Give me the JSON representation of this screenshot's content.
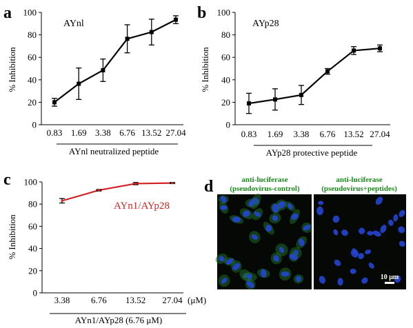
{
  "panels": {
    "a": {
      "letter": "a",
      "label": "AYnl",
      "xlabel": "AYnl  neutralized peptide"
    },
    "b": {
      "letter": "b",
      "label": "AYp28",
      "xlabel": "AYp28 protective peptide"
    },
    "c": {
      "letter": "c",
      "legend": "AYn1/AYp28",
      "xlabel": "AYn1/AYp28 (6.76 μM)",
      "unit": "(μM)"
    },
    "d": {
      "letter": "d",
      "left_title_1": "anti-luciferase",
      "left_title_2": "(pseudovirus-control)",
      "right_title_1": "anti-luciferase",
      "right_title_2": "(pseudovirus+peptides)",
      "scale_bar": "10 μm",
      "colors": {
        "cell_nuclei": "#2545d0",
        "cytoplasm": "#1e7a2a",
        "background": "#050805",
        "title_green": "#1a8a1a"
      }
    }
  },
  "chart_data": [
    {
      "type": "line",
      "panel": "a",
      "ylabel": "% Inhibition",
      "xlabel": "AYnl  neutralized peptide",
      "categories": [
        "0.83",
        "1.69",
        "3.38",
        "6.76",
        "13.52",
        "27.04"
      ],
      "series": [
        {
          "name": "AYnl",
          "values": [
            20,
            36.5,
            48.5,
            76.5,
            82.5,
            93.5
          ],
          "errors": [
            3.5,
            14,
            10,
            12.5,
            11.5,
            3.5
          ],
          "color": "#000000"
        }
      ],
      "ylim": [
        0,
        100
      ],
      "yticks": [
        0,
        20,
        40,
        60,
        80,
        100
      ]
    },
    {
      "type": "line",
      "panel": "b",
      "ylabel": "% Inhibition",
      "xlabel": "AYp28 protective peptide",
      "categories": [
        "0.83",
        "1.69",
        "3.38",
        "6.76",
        "13.52",
        "27.04"
      ],
      "series": [
        {
          "name": "AYp28",
          "values": [
            19,
            22.5,
            26.5,
            47.5,
            66,
            68
          ],
          "errors": [
            9,
            9.5,
            8.5,
            2.5,
            3.5,
            3
          ],
          "color": "#000000"
        }
      ],
      "ylim": [
        0,
        100
      ],
      "yticks": [
        0,
        20,
        40,
        60,
        80,
        100
      ]
    },
    {
      "type": "line",
      "panel": "c",
      "ylabel": "% Inhibition",
      "xlabel": "AYn1/AYp28 (6.76 μM)",
      "categories": [
        "3.38",
        "6.76",
        "13.52",
        "27.04"
      ],
      "series": [
        {
          "name": "AYn1/AYp28",
          "values": [
            83,
            92.5,
            98.5,
            99
          ],
          "errors": [
            2,
            0.7,
            1,
            0.5
          ],
          "color": "#d42222"
        }
      ],
      "ylim": [
        0,
        100
      ],
      "yticks": [
        0,
        20,
        40,
        60,
        80,
        100
      ]
    }
  ]
}
